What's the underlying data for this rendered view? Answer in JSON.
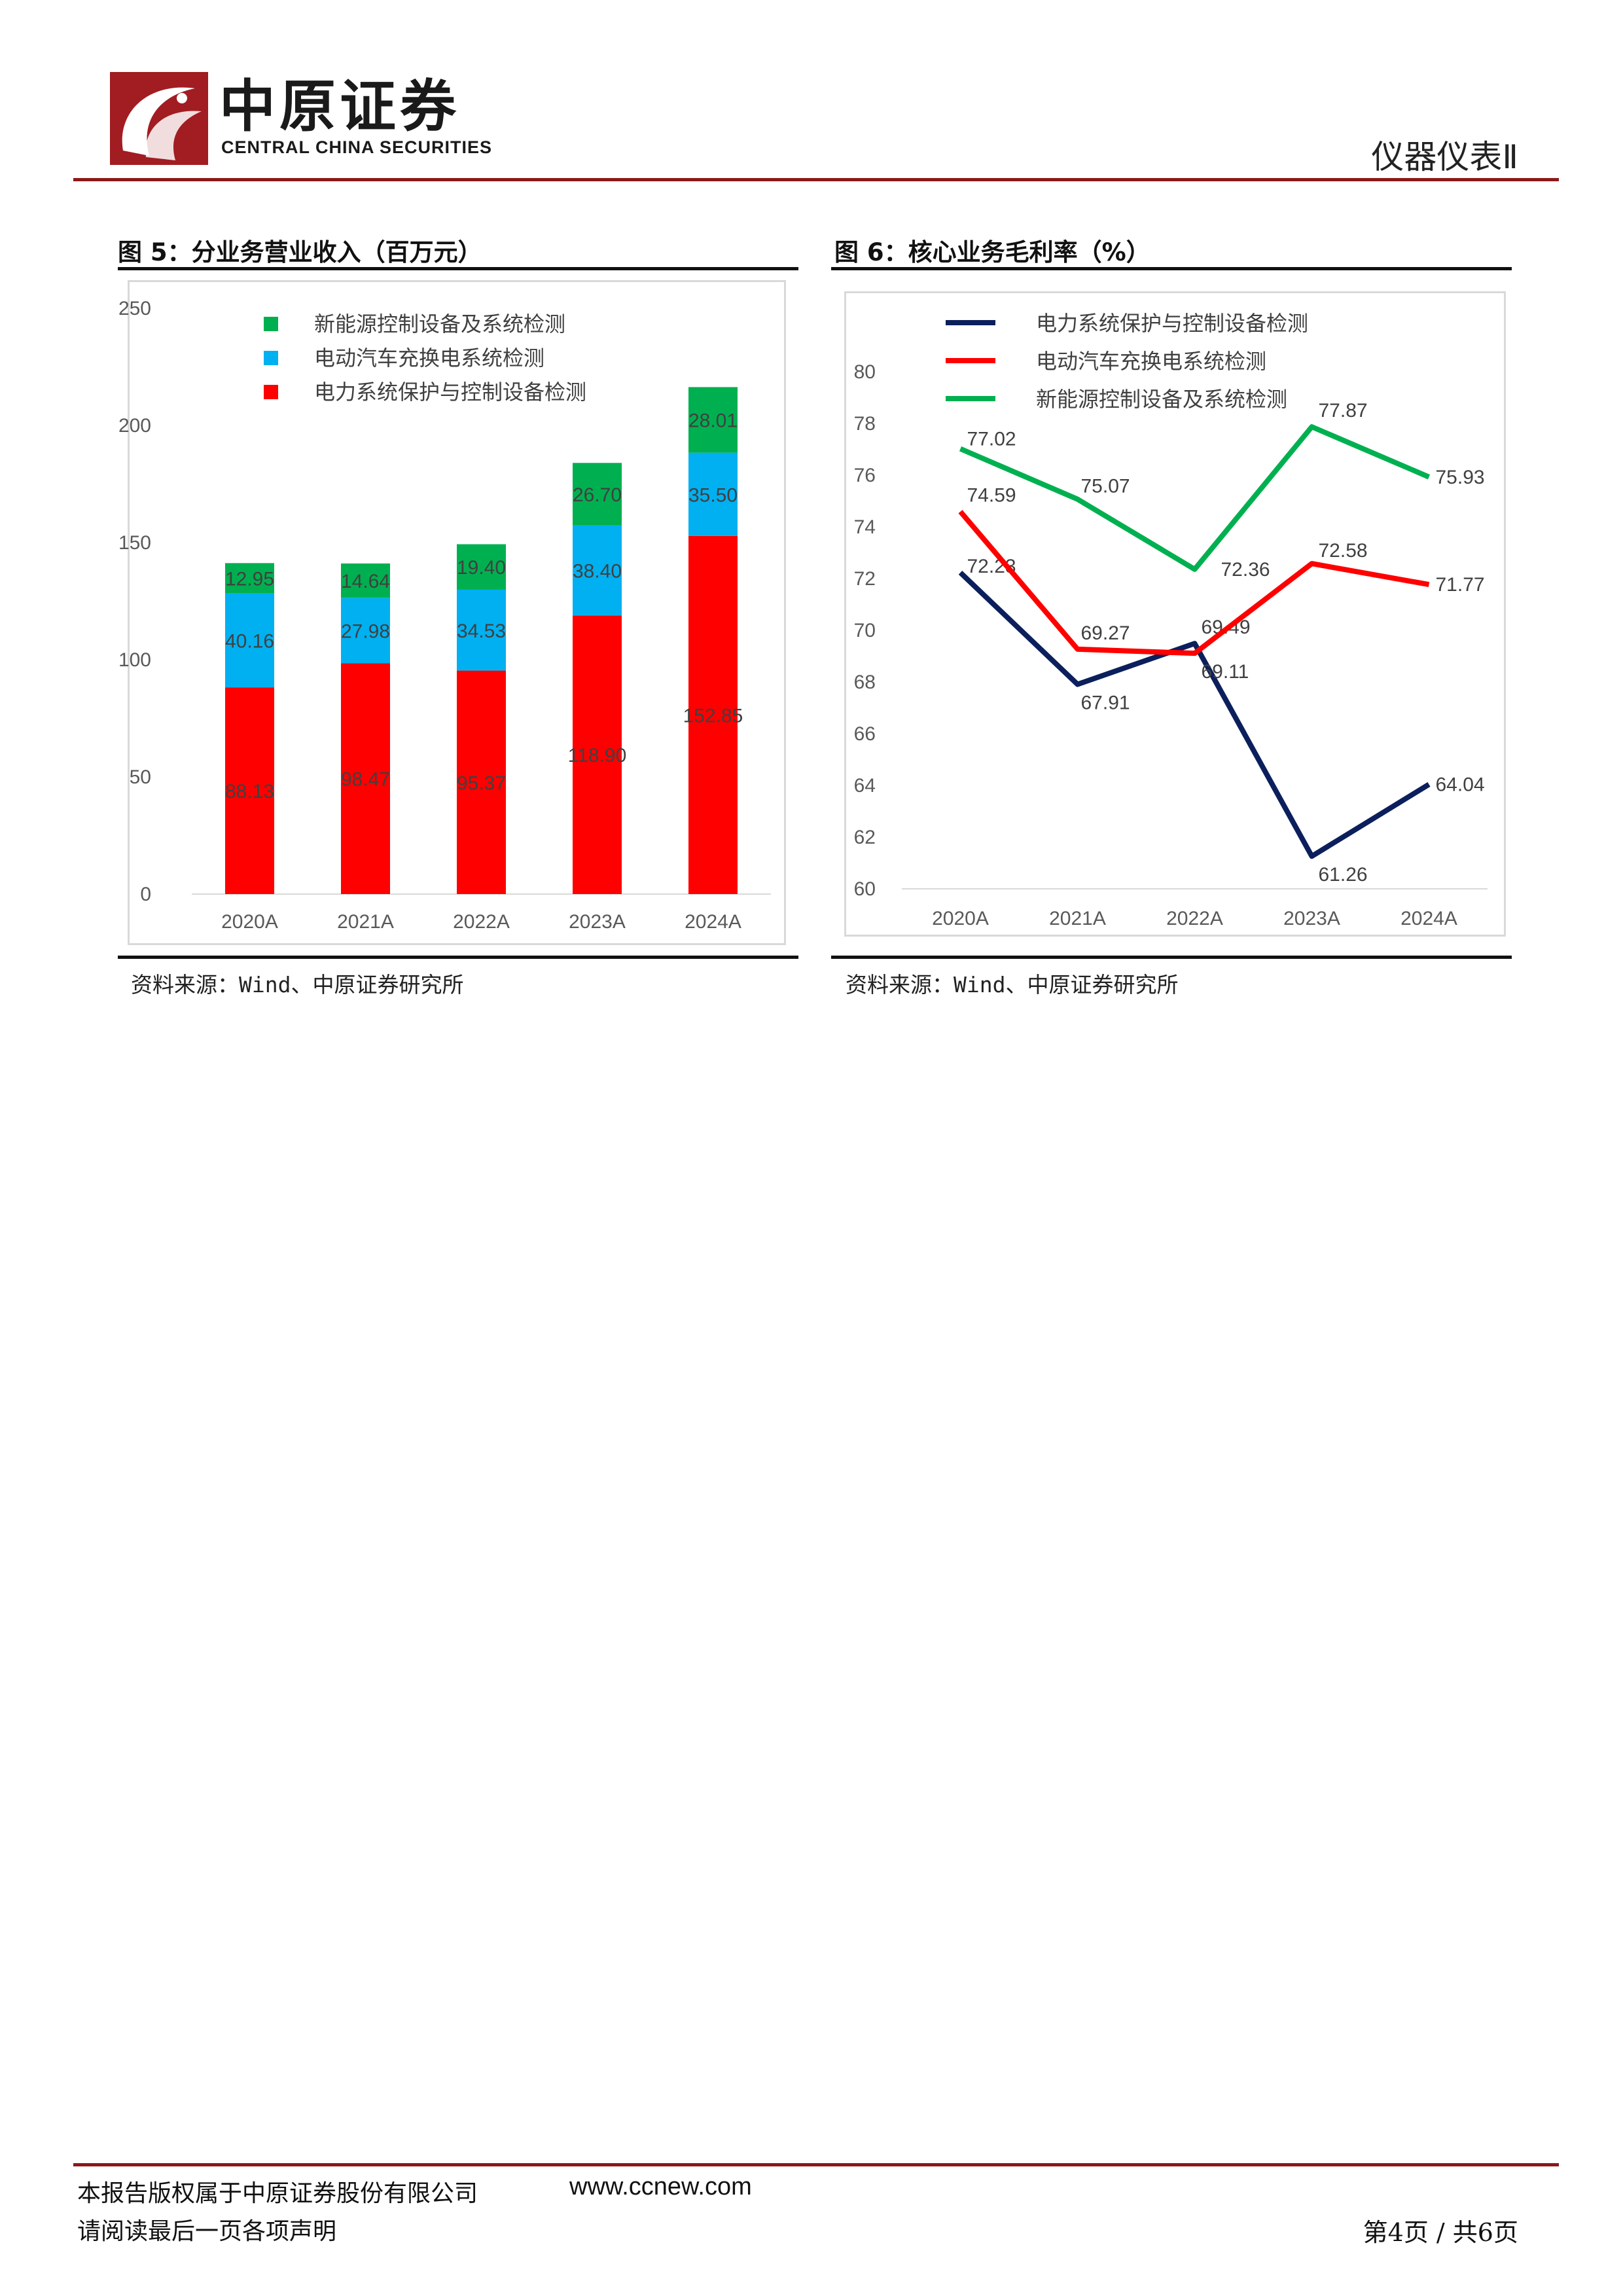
{
  "header": {
    "logo_cn": "中原证券",
    "logo_en": "CENTRAL CHINA SECURITIES",
    "sector": "仪器仪表Ⅱ"
  },
  "figures": {
    "fig5_title": "图 5：分业务营业收入（百万元）",
    "fig6_title": "图 6：核心业务毛利率（%）",
    "source": "资料来源：Wind、中原证券研究所"
  },
  "footer": {
    "copyright": "本报告版权属于中原证券股份有限公司",
    "url": "www.ccnew.com",
    "notice": "请阅读最后一页各项声明",
    "page": "第4页 / 共6页"
  },
  "chart_data": [
    {
      "type": "bar",
      "stacked": true,
      "categories": [
        "2020A",
        "2021A",
        "2022A",
        "2023A",
        "2024A"
      ],
      "ylim": [
        0,
        250
      ],
      "yticks": [
        0,
        50,
        100,
        150,
        200,
        250
      ],
      "legend_position": "top",
      "series": [
        {
          "name": "电力系统保护与控制设备检测",
          "color": "#ff0000",
          "values": [
            88.13,
            98.47,
            95.37,
            118.9,
            152.85
          ],
          "labels": [
            "88.13",
            "98.47",
            "95.37",
            "118.90",
            "152.85"
          ]
        },
        {
          "name": "电动汽车充换电系统检测",
          "color": "#00b0f0",
          "values": [
            40.16,
            27.98,
            34.53,
            38.4,
            35.5
          ],
          "labels": [
            "40.16",
            "27.98",
            "34.53",
            "38.40",
            "35.50"
          ]
        },
        {
          "name": "新能源控制设备及系统检测",
          "color": "#00b050",
          "values": [
            12.95,
            14.64,
            19.4,
            26.7,
            28.01
          ],
          "labels": [
            "12.95",
            "14.64",
            "19.40",
            "26.70",
            "28.01"
          ]
        }
      ],
      "legend_order": [
        2,
        1,
        0
      ]
    },
    {
      "type": "line",
      "categories": [
        "2020A",
        "2021A",
        "2022A",
        "2023A",
        "2024A"
      ],
      "ylim": [
        60,
        80
      ],
      "yticks": [
        60,
        62,
        64,
        66,
        68,
        70,
        72,
        74,
        76,
        78,
        80
      ],
      "legend_position": "top",
      "series": [
        {
          "name": "电力系统保护与控制设备检测",
          "color": "#0b1f5c",
          "values": [
            72.23,
            67.91,
            69.49,
            61.26,
            64.04
          ],
          "labels": [
            "72.23",
            "67.91",
            "69.49",
            "61.26",
            "64.04"
          ]
        },
        {
          "name": "电动汽车充换电系统检测",
          "color": "#ff0000",
          "values": [
            74.59,
            69.27,
            69.11,
            72.58,
            71.77
          ],
          "labels": [
            "74.59",
            "69.27",
            "69.11",
            "72.58",
            "71.77"
          ]
        },
        {
          "name": "新能源控制设备及系统检测",
          "color": "#00b050",
          "values": [
            77.02,
            75.07,
            72.36,
            77.87,
            75.93
          ],
          "labels": [
            "77.02",
            "75.07",
            "72.36",
            "77.87",
            "75.93"
          ]
        }
      ]
    }
  ]
}
